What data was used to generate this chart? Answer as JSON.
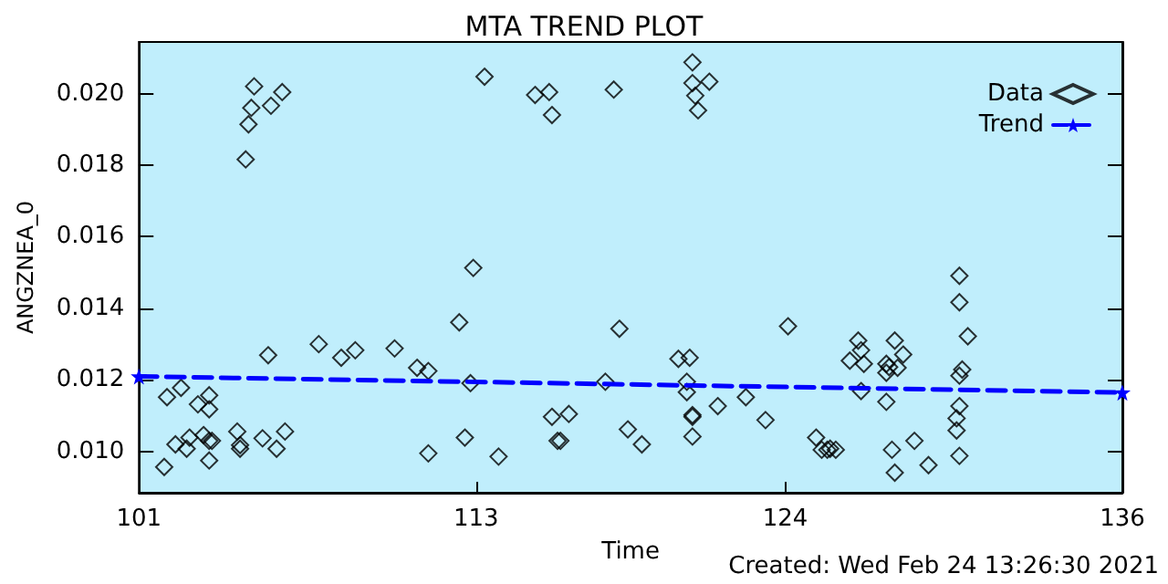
{
  "chart_data": {
    "type": "scatter",
    "title": "MTA TREND PLOT",
    "xlabel": "Time",
    "ylabel": "ANGZNEA_0",
    "annotations": [
      "Created: Wed Feb 24 13:26:30 2021"
    ],
    "xlim": [
      101,
      136
    ],
    "xticks": [
      101,
      113,
      124,
      136
    ],
    "ylim": [
      0.00885,
      0.02144
    ],
    "yticks": [
      {
        "value": 0.01,
        "label": "0.010"
      },
      {
        "value": 0.012,
        "label": "0.012"
      },
      {
        "value": 0.014,
        "label": "0.014"
      },
      {
        "value": 0.016,
        "label": "0.016"
      },
      {
        "value": 0.018,
        "label": "0.018"
      },
      {
        "value": 0.02,
        "label": "0.020"
      }
    ],
    "grid": false,
    "legend": "top right",
    "series": [
      {
        "name": "Data",
        "marker": "diamond",
        "color": "#000000",
        "x": [
          101.9,
          102.0,
          102.3,
          102.5,
          102.7,
          102.8,
          103.1,
          103.3,
          103.5,
          103.5,
          103.5,
          103.6,
          103.5,
          104.5,
          104.6,
          104.6,
          104.8,
          104.9,
          105.0,
          105.1,
          105.4,
          105.6,
          105.7,
          105.9,
          106.1,
          106.2,
          107.4,
          108.2,
          108.7,
          110.1,
          110.9,
          111.3,
          111.3,
          112.4,
          112.8,
          112.6,
          112.9,
          113.3,
          113.8,
          115.1,
          115.6,
          115.7,
          115.7,
          115.9,
          116.0,
          116.3,
          117.6,
          117.9,
          118.1,
          118.4,
          118.9,
          120.2,
          120.6,
          120.5,
          120.5,
          120.7,
          120.7,
          120.7,
          120.7,
          120.7,
          121.3,
          120.8,
          120.9,
          121.6,
          122.6,
          123.3,
          124.1,
          125.1,
          125.3,
          125.5,
          125.6,
          125.8,
          126.3,
          126.6,
          126.7,
          126.8,
          126.7,
          127.6,
          127.7,
          127.6,
          127.9,
          128.0,
          128.2,
          127.6,
          127.8,
          127.9,
          128.6,
          129.1,
          130.2,
          130.2,
          130.5,
          130.3,
          130.2,
          130.2,
          130.1,
          130.1,
          130.2
        ],
        "values": [
          0.00957,
          0.01152,
          0.0102,
          0.01178,
          0.01008,
          0.01039,
          0.01132,
          0.01046,
          0.01118,
          0.01157,
          0.0103,
          0.0103,
          0.00975,
          0.01056,
          0.01008,
          0.01018,
          0.01816,
          0.01914,
          0.0196,
          0.0202,
          0.01037,
          0.01269,
          0.01966,
          0.01008,
          0.02004,
          0.01056,
          0.013,
          0.01262,
          0.01283,
          0.01288,
          0.01234,
          0.01225,
          0.00995,
          0.01361,
          0.01191,
          0.01039,
          0.01513,
          0.02047,
          0.00986,
          0.01996,
          0.02004,
          0.0194,
          0.01097,
          0.0103,
          0.0103,
          0.01105,
          0.01195,
          0.02011,
          0.01343,
          0.01062,
          0.0102,
          0.01259,
          0.01262,
          0.01195,
          0.01166,
          0.01102,
          0.01097,
          0.01042,
          0.02087,
          0.02029,
          0.02033,
          0.01994,
          0.01953,
          0.01127,
          0.01152,
          0.01088,
          0.0135,
          0.01039,
          0.01005,
          0.01005,
          0.01008,
          0.01005,
          0.01254,
          0.0131,
          0.01283,
          0.01245,
          0.01169,
          0.01245,
          0.01236,
          0.0122,
          0.0131,
          0.01234,
          0.01271,
          0.01139,
          0.01005,
          0.00941,
          0.0103,
          0.00962,
          0.01491,
          0.01417,
          0.01322,
          0.01229,
          0.01212,
          0.01127,
          0.01093,
          0.01059,
          0.00988
        ]
      },
      {
        "name": "Trend",
        "type": "line",
        "marker": "star",
        "line_style": "dashed",
        "color": "#0000ff",
        "x": [
          101,
          136
        ],
        "values": [
          0.0121,
          0.01165
        ]
      }
    ]
  }
}
